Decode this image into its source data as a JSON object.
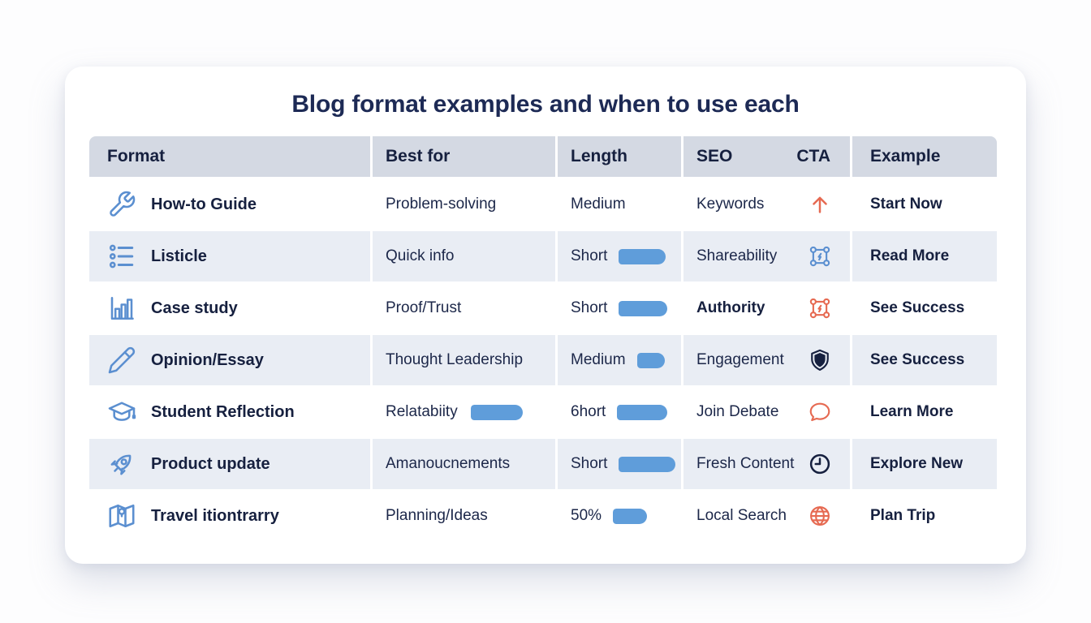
{
  "title": "Blog format examples and when to use each",
  "colors": {
    "title_navy": "#1d2a55",
    "text_navy": "#1c2749",
    "header_bg": "#d4d9e3",
    "row_shaded_bg": "#e9edf4",
    "row_white_bg": "#ffffff",
    "icon_blue": "#5b8fd0",
    "bar_blue": "#5f9dda",
    "accent_red": "#e66a52",
    "icon_navy": "#16203f"
  },
  "table": {
    "columns": [
      "Format",
      "Best for",
      "Length",
      "SEO",
      "CTA",
      "Example"
    ],
    "rows": [
      {
        "shaded": false,
        "format": {
          "icon": "wrench-icon",
          "label": "How-to Guide"
        },
        "best_for": {
          "text": "Problem-solving",
          "bar": 0
        },
        "length": {
          "text": "Medium",
          "bar": 0
        },
        "seo": {
          "text": "Keywords",
          "bold": false
        },
        "cta": {
          "icon": "arrow-up-icon",
          "tone": "red"
        },
        "example": "Start Now"
      },
      {
        "shaded": true,
        "format": {
          "icon": "list-icon",
          "label": "Listicle"
        },
        "best_for": {
          "text": "Quick info",
          "bar": 0
        },
        "length": {
          "text": "Short",
          "bar": 58
        },
        "seo": {
          "text": "Shareability",
          "bold": false
        },
        "cta": {
          "icon": "share-network-icon",
          "tone": "blue"
        },
        "example": "Read More"
      },
      {
        "shaded": false,
        "format": {
          "icon": "bar-chart-icon",
          "label": "Case study"
        },
        "best_for": {
          "text": "Proof/Trust",
          "bar": 0
        },
        "length": {
          "text": "Short",
          "bar": 60
        },
        "seo": {
          "text": "Authority",
          "bold": true
        },
        "cta": {
          "icon": "bolt-network-icon",
          "tone": "red"
        },
        "example": "See Success"
      },
      {
        "shaded": true,
        "format": {
          "icon": "pencil-icon",
          "label": "Opinion/Essay"
        },
        "best_for": {
          "text": "Thought Leadership",
          "bar": 0
        },
        "length": {
          "text": "Medium",
          "bar": 34
        },
        "seo": {
          "text": "Engagement",
          "bold": false
        },
        "cta": {
          "icon": "shield-icon",
          "tone": "navy"
        },
        "example": "See Success"
      },
      {
        "shaded": false,
        "format": {
          "icon": "graduation-cap-icon",
          "label": "Student Reflection"
        },
        "best_for": {
          "text": "Relatabiity",
          "bar": 64
        },
        "length": {
          "text": "6hort",
          "bar": 62
        },
        "seo": {
          "text": "Join Debate",
          "bold": false
        },
        "cta": {
          "icon": "speech-bubble-icon",
          "tone": "red"
        },
        "example": "Learn More"
      },
      {
        "shaded": true,
        "format": {
          "icon": "rocket-icon",
          "label": "Product update"
        },
        "best_for": {
          "text": "Amanoucnements",
          "bar": 0
        },
        "length": {
          "text": "Short",
          "bar": 70
        },
        "seo": {
          "text": "Fresh Content",
          "bold": false
        },
        "cta": {
          "icon": "clock-icon",
          "tone": "navy"
        },
        "example": "Explore New"
      },
      {
        "shaded": false,
        "format": {
          "icon": "map-icon",
          "label": "Travel itiontrarry"
        },
        "best_for": {
          "text": "Planning/Ideas",
          "bar": 0
        },
        "length": {
          "text": "50%",
          "bar": 42
        },
        "seo": {
          "text": "Local Search",
          "bold": false
        },
        "cta": {
          "icon": "globe-icon",
          "tone": "red"
        },
        "example": "Plan Trip"
      }
    ]
  }
}
